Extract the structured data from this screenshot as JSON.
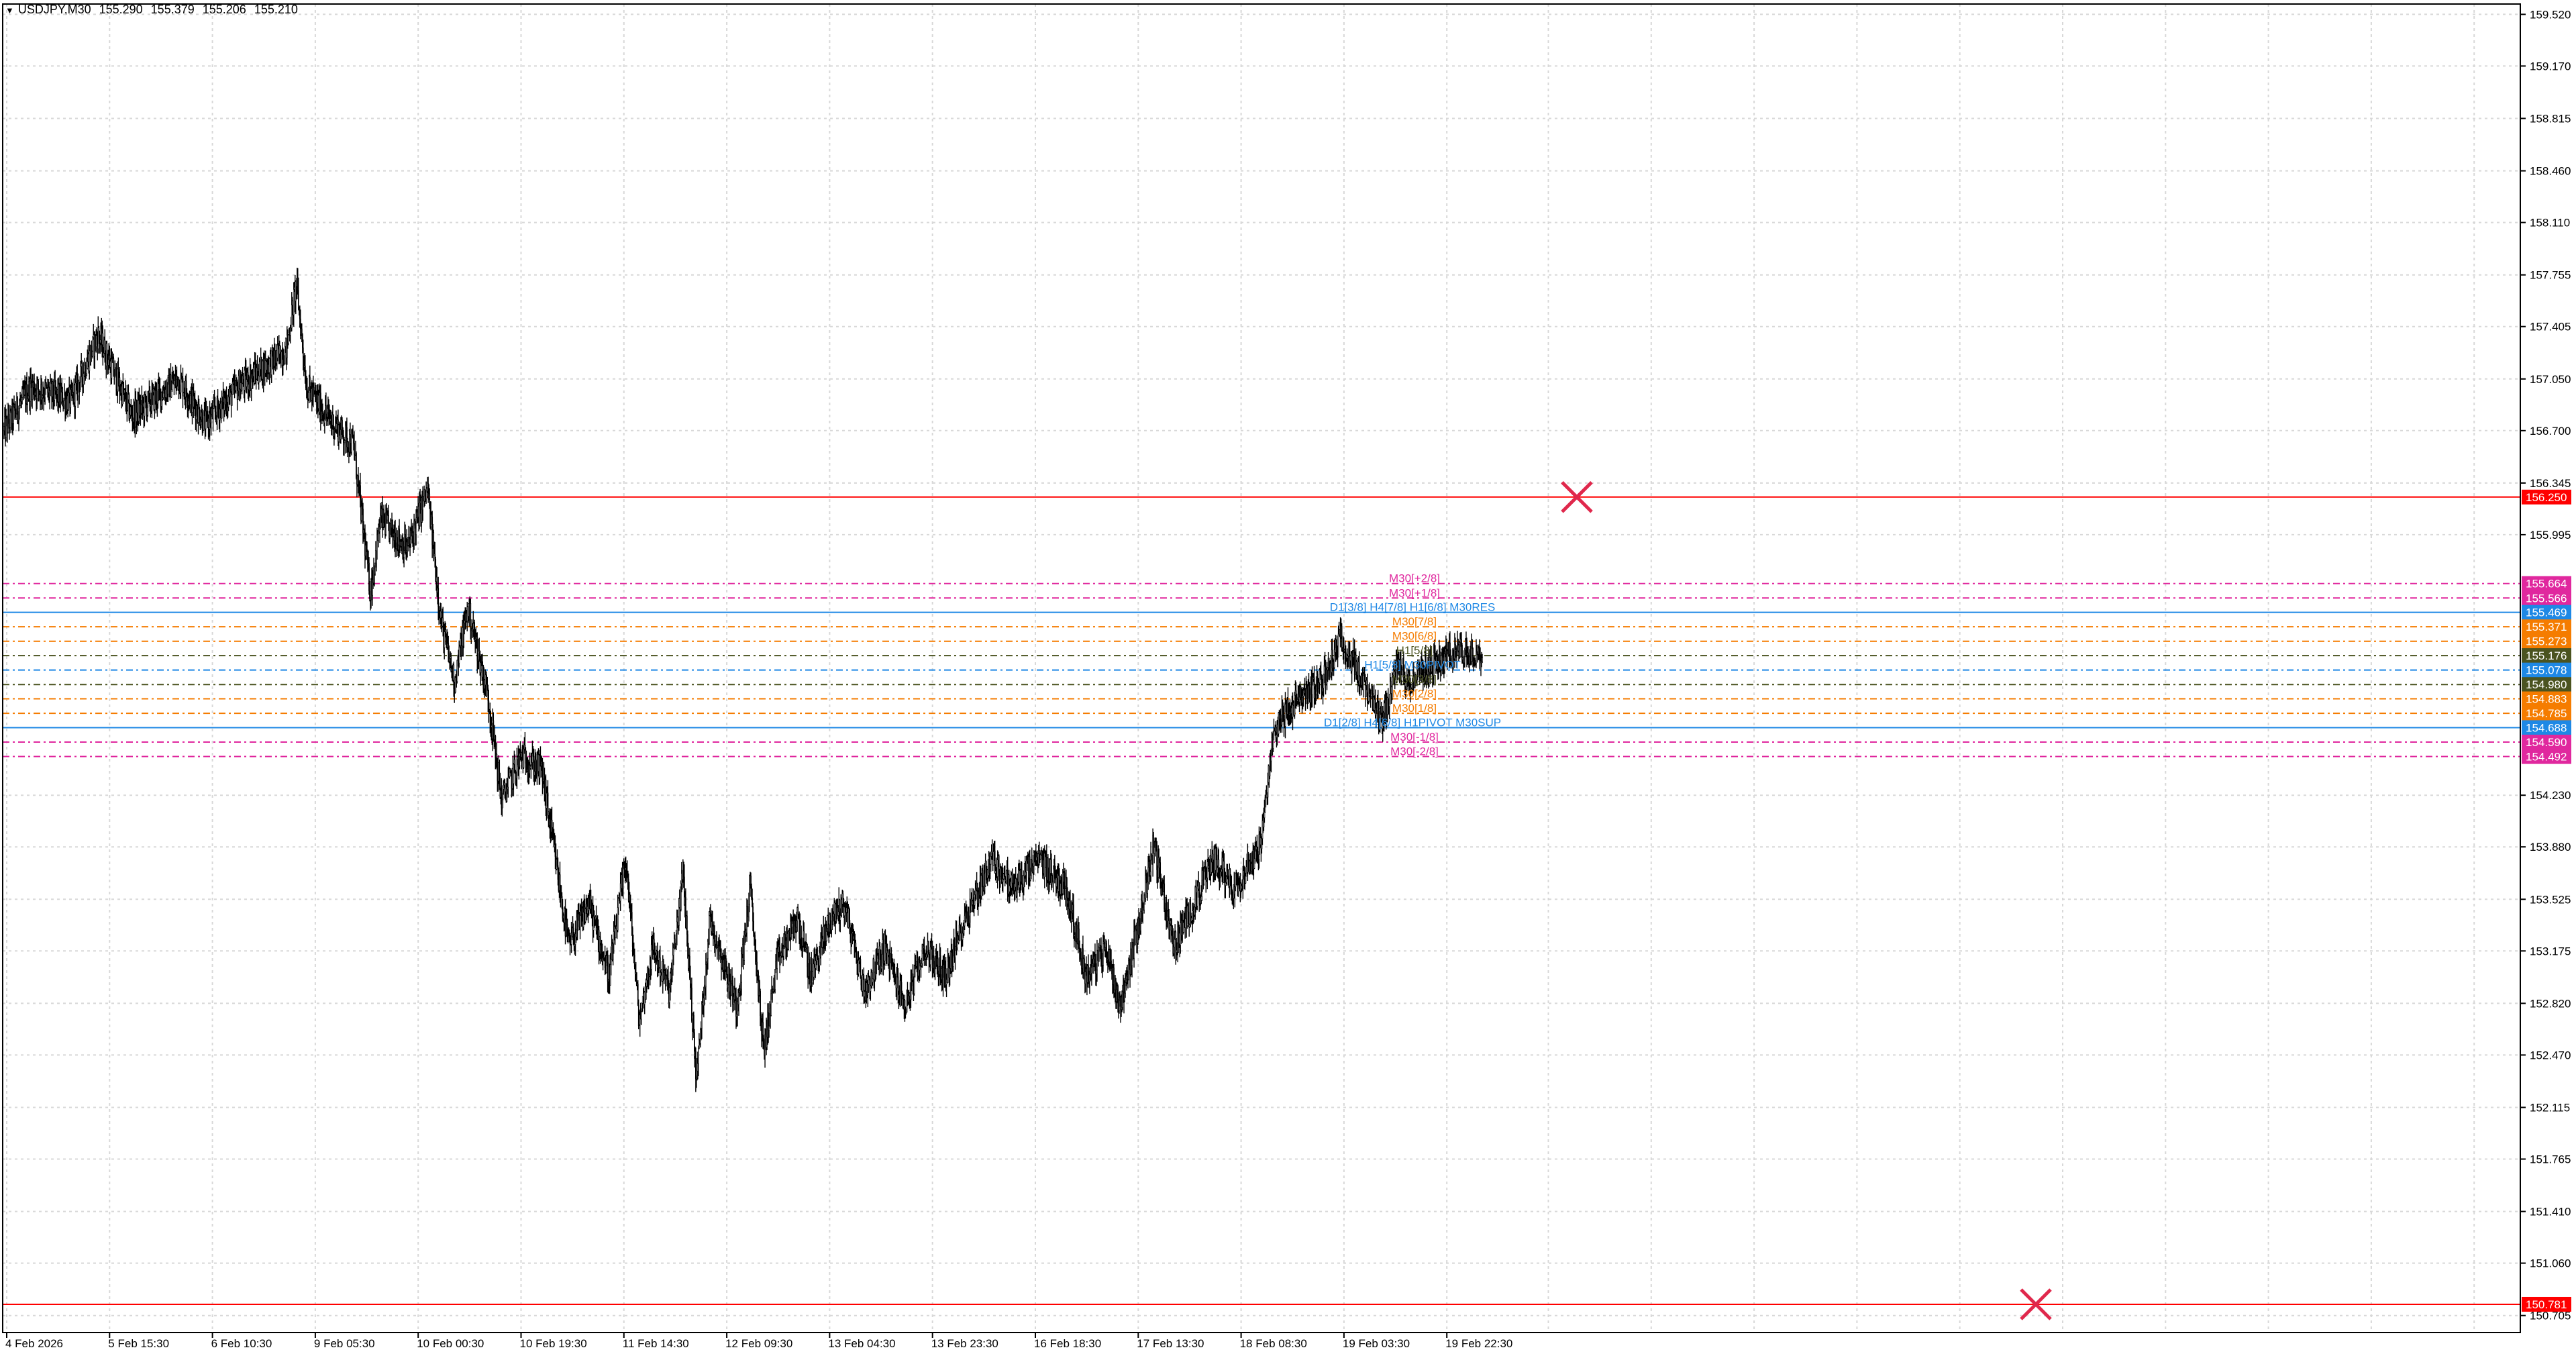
{
  "header": {
    "symbol": "USDJPY,M30",
    "open": "155.290",
    "high": "155.379",
    "low": "155.206",
    "close": "155.210"
  },
  "colors": {
    "background": "#ffffff",
    "grid": "#d8d8d8",
    "candle": "#000000",
    "level_magenta": "#e0289e",
    "level_blue": "#1e88e5",
    "level_orange": "#f57c00",
    "level_dark": "#4b5320",
    "level_red": "#ff0000",
    "cross": "#e0284c"
  },
  "chart_data": {
    "type": "candlestick",
    "symbol": "USDJPY",
    "timeframe": "M30",
    "ylim": [
      150.59,
      159.59
    ],
    "y_ticks": [
      "159.520",
      "159.170",
      "158.815",
      "158.460",
      "158.110",
      "157.755",
      "157.405",
      "157.050",
      "156.700",
      "156.345",
      "155.995",
      "154.230",
      "153.880",
      "153.525",
      "153.175",
      "152.820",
      "152.470",
      "152.115",
      "151.765",
      "151.410",
      "151.060",
      "150.705"
    ],
    "x_ticks": [
      "4 Feb 2026",
      "5 Feb 15:30",
      "6 Feb 10:30",
      "9 Feb 05:30",
      "10 Feb 00:30",
      "10 Feb 19:30",
      "11 Feb 14:30",
      "12 Feb 09:30",
      "13 Feb 04:30",
      "13 Feb 23:30",
      "16 Feb 18:30",
      "17 Feb 13:30",
      "18 Feb 08:30",
      "19 Feb 03:30",
      "19 Feb 22:30"
    ],
    "grid": true,
    "price_path": [
      [
        0,
        156.7
      ],
      [
        40,
        157.0
      ],
      [
        100,
        156.9
      ],
      [
        140,
        157.35
      ],
      [
        190,
        156.8
      ],
      [
        260,
        157.05
      ],
      [
        300,
        156.75
      ],
      [
        350,
        157.0
      ],
      [
        420,
        157.25
      ],
      [
        435,
        157.7
      ],
      [
        450,
        157.0
      ],
      [
        480,
        156.8
      ],
      [
        520,
        156.6
      ],
      [
        545,
        155.6
      ],
      [
        560,
        156.1
      ],
      [
        600,
        155.9
      ],
      [
        630,
        156.3
      ],
      [
        650,
        155.4
      ],
      [
        670,
        155.0
      ],
      [
        690,
        155.5
      ],
      [
        720,
        154.9
      ],
      [
        740,
        154.2
      ],
      [
        770,
        154.5
      ],
      [
        800,
        154.4
      ],
      [
        820,
        153.8
      ],
      [
        840,
        153.2
      ],
      [
        870,
        153.5
      ],
      [
        900,
        153.0
      ],
      [
        925,
        153.8
      ],
      [
        945,
        152.7
      ],
      [
        965,
        153.2
      ],
      [
        990,
        152.9
      ],
      [
        1010,
        153.7
      ],
      [
        1030,
        152.3
      ],
      [
        1050,
        153.4
      ],
      [
        1070,
        153.1
      ],
      [
        1090,
        152.8
      ],
      [
        1110,
        153.6
      ],
      [
        1130,
        152.5
      ],
      [
        1150,
        153.1
      ],
      [
        1180,
        153.4
      ],
      [
        1200,
        153.0
      ],
      [
        1230,
        153.4
      ],
      [
        1250,
        153.5
      ],
      [
        1280,
        152.9
      ],
      [
        1310,
        153.2
      ],
      [
        1340,
        152.8
      ],
      [
        1370,
        153.2
      ],
      [
        1400,
        153.0
      ],
      [
        1430,
        153.4
      ],
      [
        1470,
        153.8
      ],
      [
        1500,
        153.6
      ],
      [
        1540,
        153.8
      ],
      [
        1580,
        153.6
      ],
      [
        1610,
        153.0
      ],
      [
        1640,
        153.2
      ],
      [
        1660,
        152.8
      ],
      [
        1690,
        153.4
      ],
      [
        1710,
        153.9
      ],
      [
        1740,
        153.2
      ],
      [
        1770,
        153.5
      ],
      [
        1800,
        153.8
      ],
      [
        1830,
        153.6
      ],
      [
        1870,
        153.9
      ],
      [
        1890,
        154.7
      ],
      [
        1930,
        154.9
      ],
      [
        1960,
        155.0
      ],
      [
        1990,
        155.3
      ],
      [
        2010,
        155.1
      ],
      [
        2030,
        154.9
      ],
      [
        2050,
        154.7
      ],
      [
        2070,
        155.1
      ],
      [
        2090,
        155.0
      ],
      [
        2120,
        155.1
      ],
      [
        2160,
        155.2
      ],
      [
        2200,
        155.21
      ]
    ],
    "hlines": [
      {
        "price": 156.25,
        "label": "156.250",
        "color": "#ff0000",
        "style": "solid"
      },
      {
        "price": 155.664,
        "label": "155.664",
        "color": "#e0289e",
        "style": "dashdot"
      },
      {
        "price": 155.566,
        "label": "155.566",
        "color": "#e0289e",
        "style": "dashdot"
      },
      {
        "price": 155.469,
        "label": "155.469",
        "color": "#1e88e5",
        "style": "solid"
      },
      {
        "price": 155.371,
        "label": "155.371",
        "color": "#f57c00",
        "style": "dashdot"
      },
      {
        "price": 155.273,
        "label": "155.273",
        "color": "#f57c00",
        "style": "dashdot"
      },
      {
        "price": 155.176,
        "label": "155.176",
        "color": "#4b5320",
        "style": "dashdot"
      },
      {
        "price": 155.078,
        "label": "155.078",
        "color": "#1e88e5",
        "style": "dashdot"
      },
      {
        "price": 154.98,
        "label": "154.980",
        "color": "#4b5320",
        "style": "dashdot"
      },
      {
        "price": 154.883,
        "label": "154.883",
        "color": "#f57c00",
        "style": "dashdot"
      },
      {
        "price": 154.785,
        "label": "154.785",
        "color": "#f57c00",
        "style": "dashdot"
      },
      {
        "price": 154.688,
        "label": "154.688",
        "color": "#1e88e5",
        "style": "solid"
      },
      {
        "price": 154.59,
        "label": "154.590",
        "color": "#e0289e",
        "style": "dashdot"
      },
      {
        "price": 154.492,
        "label": "154.492",
        "color": "#e0289e",
        "style": "dashdot"
      },
      {
        "price": 150.781,
        "label": "150.781",
        "color": "#ff0000",
        "style": "solid"
      }
    ],
    "level_labels": [
      {
        "text": "M30[+2/8]",
        "price": 155.664,
        "color": "#e0289e"
      },
      {
        "text": "M30[+1/8]",
        "price": 155.566,
        "color": "#e0289e"
      },
      {
        "text": "D1[3/8] H4[7/8] H1[6/8] M30RES",
        "price": 155.469,
        "color": "#1e88e5"
      },
      {
        "text": "M30[7/8]",
        "price": 155.371,
        "color": "#f57c00"
      },
      {
        "text": "M30[6/8]",
        "price": 155.273,
        "color": "#f57c00"
      },
      {
        "text": "H1[5/8]",
        "price": 155.176,
        "color": "#4b5320"
      },
      {
        "text": "H1[5/8] M30PIVOT",
        "price": 155.078,
        "color": "#1e88e5"
      },
      {
        "text": "M30[3/8]",
        "price": 154.98,
        "color": "#4b5320"
      },
      {
        "text": "M30[2/8]",
        "price": 154.883,
        "color": "#f57c00"
      },
      {
        "text": "M30[1/8]",
        "price": 154.785,
        "color": "#f57c00"
      },
      {
        "text": "D1[2/8] H4[6/8] H1PIVOT M30SUP",
        "price": 154.688,
        "color": "#1e88e5"
      },
      {
        "text": "M30[-1/8]",
        "price": 154.59,
        "color": "#e0289e"
      },
      {
        "text": "M30[-2/8]",
        "price": 154.492,
        "color": "#e0289e"
      }
    ],
    "markers": [
      {
        "type": "cross",
        "price": 156.25,
        "x_position": "22 Feb"
      },
      {
        "type": "cross",
        "price": 150.781,
        "x_position": "24 Feb"
      }
    ]
  }
}
